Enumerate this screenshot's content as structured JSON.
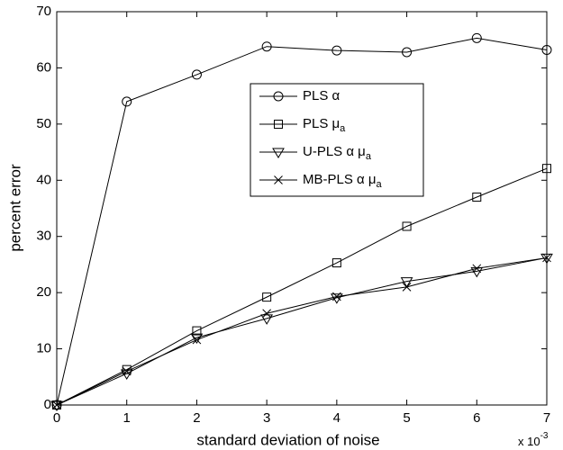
{
  "chart_data": {
    "type": "line",
    "xlabel": "standard deviation of noise",
    "ylabel": "percent error",
    "x_multiplier": {
      "base": "x 10",
      "exponent": "-3"
    },
    "x": [
      0,
      1,
      2,
      3,
      4,
      5,
      6,
      7
    ],
    "xlim": [
      0,
      7
    ],
    "xticks": [
      0,
      1,
      2,
      3,
      4,
      5,
      6,
      7
    ],
    "ylim": [
      0,
      70
    ],
    "yticks": [
      0,
      10,
      20,
      30,
      40,
      50,
      60,
      70
    ],
    "grid": false,
    "legend_position": "upper-center",
    "series": [
      {
        "name": "PLS α",
        "name_subscript": null,
        "marker": "circle",
        "color": "#000000",
        "values": [
          0,
          54,
          58.8,
          63.8,
          63.1,
          62.8,
          65.3,
          63.2
        ]
      },
      {
        "name": "PLS μ",
        "name_subscript": "a",
        "marker": "square",
        "color": "#000000",
        "values": [
          0,
          6.3,
          13.2,
          19.2,
          25.3,
          31.8,
          37,
          42.1
        ]
      },
      {
        "name": "U-PLS α μ",
        "name_subscript": "a",
        "marker": "triangle-down",
        "color": "#000000",
        "values": [
          0,
          5.6,
          12,
          15.4,
          19.1,
          22,
          23.8,
          26.2
        ]
      },
      {
        "name": "MB-PLS α μ",
        "name_subscript": "a",
        "marker": "x",
        "color": "#000000",
        "values": [
          0,
          6,
          11.6,
          16.3,
          19.3,
          21,
          24.3,
          26.2
        ]
      }
    ]
  }
}
